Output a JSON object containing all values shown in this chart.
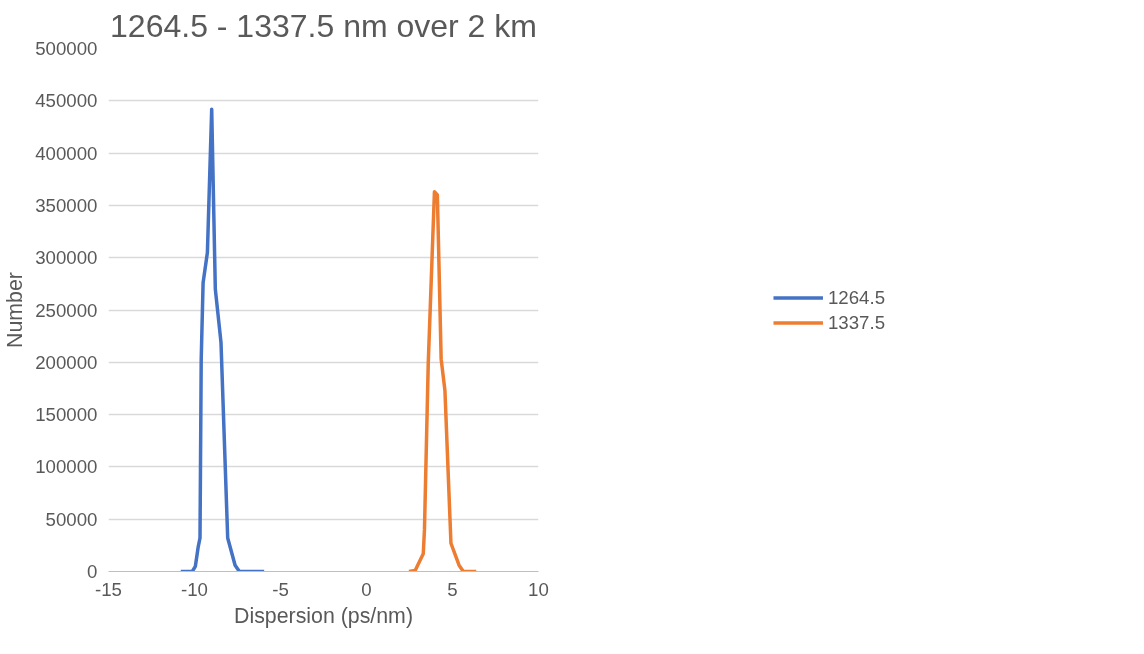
{
  "chart_data": {
    "type": "line",
    "title": "1264.5 - 1337.5 nm over 2 km",
    "xlabel": "Dispersion (ps/nm)",
    "ylabel": "Number",
    "series": [
      {
        "name": "1264.5",
        "color": "#4472c4",
        "x": [
          -10.8,
          -10.13,
          -9.95,
          -9.79,
          -9.68,
          -9.61,
          -9.5,
          -9.25,
          -9.0,
          -8.79,
          -8.46,
          -8.07,
          -7.64,
          -7.39,
          -5.95
        ],
        "values": [
          0,
          0,
          5000,
          23000,
          32000,
          203000,
          276000,
          305000,
          442000,
          270000,
          219000,
          32000,
          6000,
          0,
          0
        ]
      },
      {
        "name": "1337.5",
        "color": "#ed7d31",
        "x": [
          2.47,
          2.83,
          3.3,
          3.37,
          3.59,
          3.95,
          4.12,
          4.34,
          4.56,
          4.91,
          5.38,
          5.63,
          6.38
        ],
        "values": [
          0,
          1000,
          17000,
          40000,
          199000,
          363000,
          360000,
          203000,
          173000,
          27000,
          6000,
          0,
          0
        ]
      }
    ],
    "xlim": [
      -15,
      10
    ],
    "xticks": [
      -15,
      -10,
      -5,
      0,
      5,
      10
    ],
    "ylim": [
      0,
      500000
    ],
    "yticks": [
      0,
      50000,
      100000,
      150000,
      200000,
      250000,
      300000,
      350000,
      400000,
      450000,
      500000
    ],
    "grid": "y",
    "legend": "right",
    "line_style": "solid"
  }
}
